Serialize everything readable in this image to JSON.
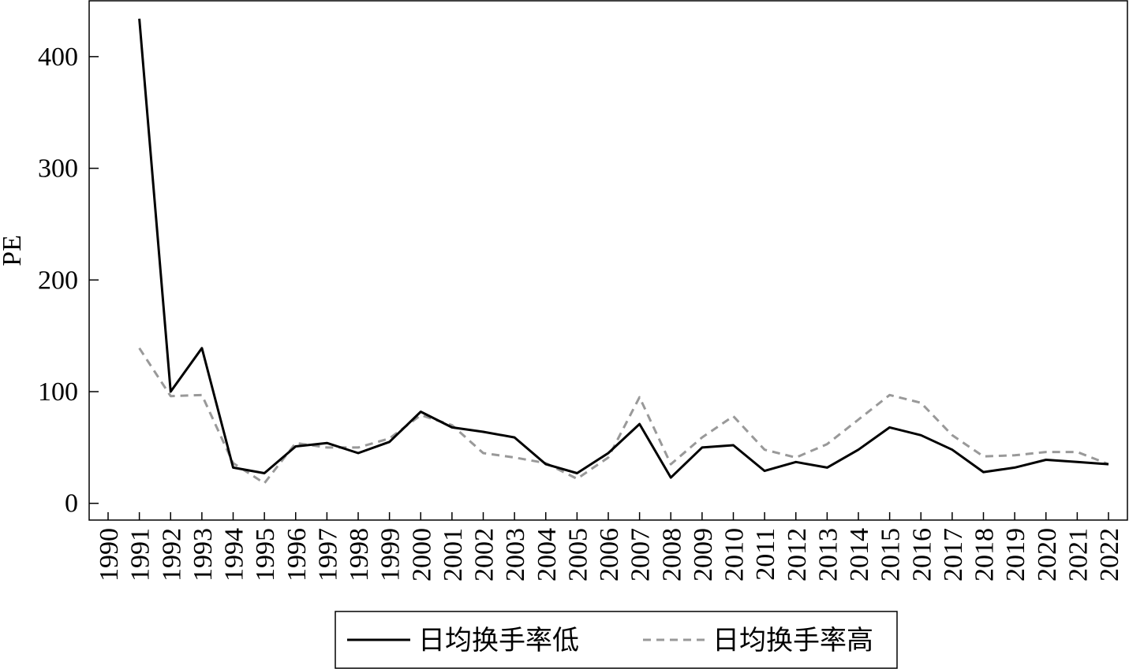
{
  "chart_data": {
    "type": "line",
    "title": "",
    "xlabel": "",
    "ylabel": "PE",
    "ylim": [
      -15,
      450
    ],
    "yticks": [
      0,
      100,
      200,
      300,
      400
    ],
    "x": [
      "1990",
      "1991",
      "1992",
      "1993",
      "1994",
      "1995",
      "1996",
      "1997",
      "1998",
      "1999",
      "2000",
      "2001",
      "2002",
      "2003",
      "2004",
      "2005",
      "2006",
      "2007",
      "2008",
      "2009",
      "2010",
      "2011",
      "2012",
      "2013",
      "2014",
      "2015",
      "2016",
      "2017",
      "2018",
      "2019",
      "2020",
      "2021",
      "2022"
    ],
    "series": [
      {
        "name": "日均换手率低",
        "style": "solid",
        "color": "#000000",
        "values": [
          null,
          434,
          100,
          139,
          32,
          27,
          51,
          54,
          45,
          55,
          82,
          68,
          64,
          59,
          35,
          27,
          45,
          71,
          23,
          50,
          52,
          29,
          37,
          32,
          48,
          68,
          61,
          48,
          28,
          32,
          39,
          37,
          35
        ]
      },
      {
        "name": "日均换手率高",
        "style": "dashed",
        "color": "#999999",
        "values": [
          null,
          139,
          96,
          97,
          36,
          18,
          54,
          50,
          50,
          58,
          79,
          70,
          45,
          41,
          36,
          22,
          41,
          95,
          35,
          59,
          78,
          48,
          41,
          53,
          75,
          97,
          90,
          61,
          42,
          43,
          46,
          46,
          35
        ]
      }
    ],
    "legend_position": "bottom",
    "grid": false
  }
}
